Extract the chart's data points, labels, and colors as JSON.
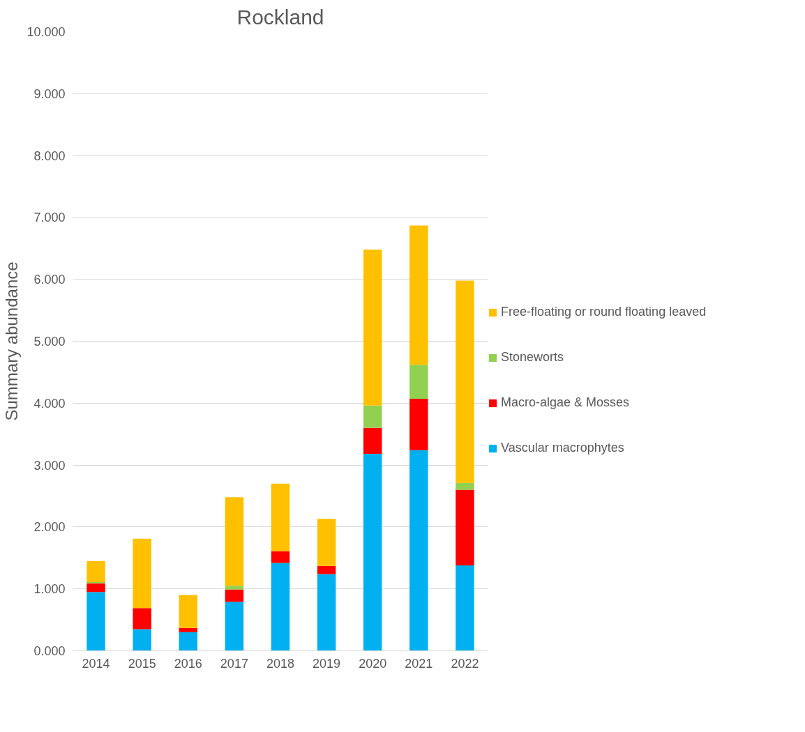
{
  "chart_data": {
    "type": "bar",
    "title": "Rockland",
    "ylabel": "Summary abundance",
    "stacked": true,
    "categories": [
      "2014",
      "2015",
      "2016",
      "2017",
      "2018",
      "2019",
      "2020",
      "2021",
      "2022"
    ],
    "series": [
      {
        "name": "Vascular macrophytes",
        "color": "#00b0f0",
        "values": [
          0.95,
          0.35,
          0.3,
          0.79,
          1.42,
          1.24,
          3.18,
          3.24,
          1.38
        ]
      },
      {
        "name": "Macro-algae & Mosses",
        "color": "#ff0000",
        "values": [
          0.14,
          0.34,
          0.07,
          0.2,
          0.19,
          0.13,
          0.42,
          0.83,
          1.22
        ]
      },
      {
        "name": "Stoneworts",
        "color": "#92d050",
        "values": [
          0.02,
          0,
          0,
          0.06,
          0,
          0,
          0.36,
          0.55,
          0.11
        ]
      },
      {
        "name": "Free-floating or round floating leaved",
        "color": "#ffc000",
        "values": [
          0.34,
          1.12,
          0.53,
          1.43,
          1.09,
          0.76,
          2.52,
          2.25,
          3.27
        ]
      }
    ],
    "ylim": [
      0,
      10
    ],
    "yticks": [
      {
        "value": 0,
        "label": "0.000"
      },
      {
        "value": 1,
        "label": "1.000"
      },
      {
        "value": 2,
        "label": "2.000"
      },
      {
        "value": 3,
        "label": "3.000"
      },
      {
        "value": 4,
        "label": "4.000"
      },
      {
        "value": 5,
        "label": "5.000"
      },
      {
        "value": 6,
        "label": "6.000"
      },
      {
        "value": 7,
        "label": "7.000"
      },
      {
        "value": 8,
        "label": "8.000"
      },
      {
        "value": 9,
        "label": "9.000"
      },
      {
        "value": 10,
        "label": "10.000"
      }
    ],
    "grid": "y",
    "legend": "right"
  }
}
